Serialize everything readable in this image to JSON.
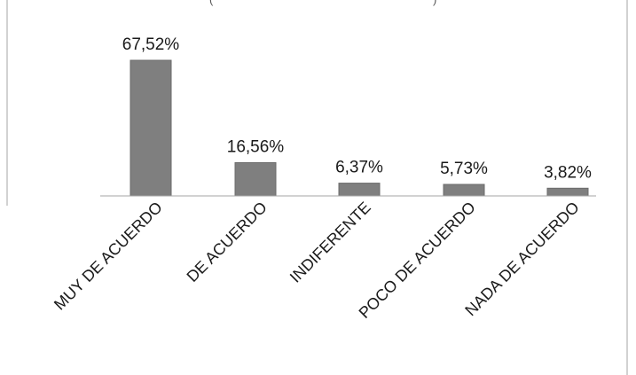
{
  "chart_data": {
    "type": "bar",
    "categories": [
      "MUY DE ACUERDO",
      "DE ACUERDO",
      "INDIFERENTE",
      "POCO DE ACUERDO",
      "NADA DE ACUERDO"
    ],
    "values": [
      67.52,
      16.56,
      6.37,
      5.73,
      3.82
    ],
    "data_labels": [
      "67,52%",
      "16,56%",
      "6,37%",
      "5,73%",
      "3,82%"
    ],
    "title": "",
    "xlabel": "",
    "ylabel": "",
    "ylim": [
      0,
      70
    ],
    "grid": false,
    "legend": "none",
    "bar_color": "#7f7f7f"
  }
}
